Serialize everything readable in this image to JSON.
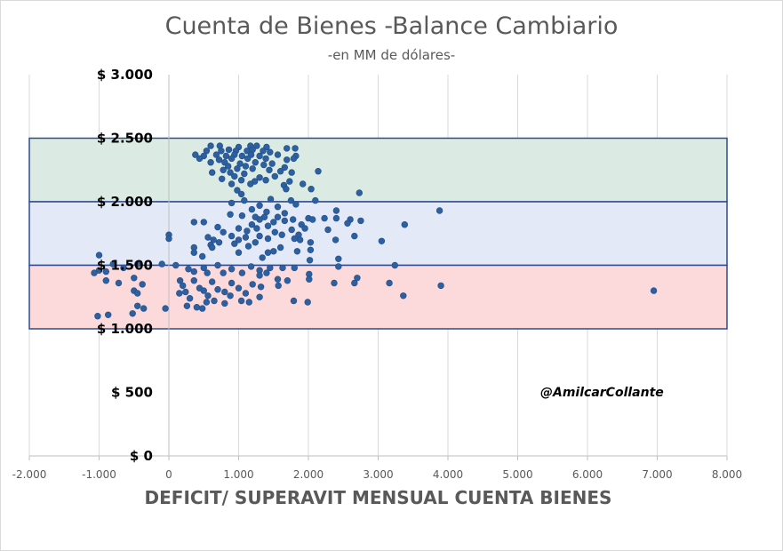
{
  "chart_data": {
    "type": "scatter",
    "title": "Cuenta de Bienes -Balance Cambiario",
    "subtitle": "-en MM de dólares-",
    "xlabel": "DEFICIT/ SUPERAVIT MENSUAL CUENTA BIENES",
    "ylabel": "",
    "annotation": "@AmilcarCollante",
    "xlim": [
      -2000,
      8000
    ],
    "ylim": [
      0,
      3000
    ],
    "x_ticks": [
      -2000,
      -1000,
      0,
      1000,
      2000,
      3000,
      4000,
      5000,
      6000,
      7000,
      8000
    ],
    "x_tick_labels": [
      "-2.000",
      "-1.000",
      "0",
      "1.000",
      "2.000",
      "3.000",
      "4.000",
      "5.000",
      "6.000",
      "7.000",
      "8.000"
    ],
    "y_ticks": [
      0,
      500,
      1000,
      1500,
      2000,
      2500,
      3000
    ],
    "y_tick_labels": [
      "$ 0",
      "$ 500",
      "$ 1.000",
      "$ 1.500",
      "$ 2.000",
      "$ 2.500",
      "$ 3.000"
    ],
    "grid": "vertical",
    "marker_color": "#2e5f9e",
    "bands": [
      {
        "y_from": 2000,
        "y_to": 2500,
        "fill": "#dbeae2",
        "stroke": "#2f4b8c"
      },
      {
        "y_from": 1500,
        "y_to": 2000,
        "fill": "#e4e9f7",
        "stroke": "#2f4b8c"
      },
      {
        "y_from": 1000,
        "y_to": 1500,
        "fill": "#fcd9da",
        "stroke": "#2f4b8c"
      }
    ],
    "points": [
      [
        600,
        2440
      ],
      [
        730,
        2440
      ],
      [
        1000,
        2430
      ],
      [
        1170,
        2440
      ],
      [
        1260,
        2440
      ],
      [
        1400,
        2430
      ],
      [
        1690,
        2420
      ],
      [
        1810,
        2420
      ],
      [
        540,
        2400
      ],
      [
        750,
        2400
      ],
      [
        860,
        2410
      ],
      [
        960,
        2400
      ],
      [
        1120,
        2400
      ],
      [
        1200,
        2410
      ],
      [
        1350,
        2400
      ],
      [
        1450,
        2390
      ],
      [
        380,
        2370
      ],
      [
        500,
        2360
      ],
      [
        680,
        2370
      ],
      [
        820,
        2360
      ],
      [
        940,
        2370
      ],
      [
        1050,
        2360
      ],
      [
        1180,
        2370
      ],
      [
        1300,
        2360
      ],
      [
        1560,
        2370
      ],
      [
        1820,
        2360
      ],
      [
        440,
        2340
      ],
      [
        720,
        2330
      ],
      [
        900,
        2340
      ],
      [
        1130,
        2340
      ],
      [
        1390,
        2340
      ],
      [
        1690,
        2330
      ],
      [
        1790,
        2340
      ],
      [
        600,
        2310
      ],
      [
        800,
        2310
      ],
      [
        1020,
        2300
      ],
      [
        1240,
        2310
      ],
      [
        1480,
        2300
      ],
      [
        850,
        2280
      ],
      [
        1100,
        2280
      ],
      [
        1360,
        2290
      ],
      [
        1660,
        2270
      ],
      [
        780,
        2250
      ],
      [
        980,
        2260
      ],
      [
        1200,
        2260
      ],
      [
        1440,
        2250
      ],
      [
        1600,
        2240
      ],
      [
        620,
        2230
      ],
      [
        880,
        2230
      ],
      [
        1080,
        2220
      ],
      [
        1760,
        2230
      ],
      [
        2140,
        2240
      ],
      [
        940,
        2200
      ],
      [
        1300,
        2190
      ],
      [
        1520,
        2200
      ],
      [
        760,
        2180
      ],
      [
        1040,
        2170
      ],
      [
        1230,
        2160
      ],
      [
        1390,
        2170
      ],
      [
        1730,
        2160
      ],
      [
        900,
        2140
      ],
      [
        1170,
        2140
      ],
      [
        1650,
        2130
      ],
      [
        1920,
        2140
      ],
      [
        1680,
        2100
      ],
      [
        2040,
        2100
      ],
      [
        980,
        2090
      ],
      [
        1040,
        2060
      ],
      [
        2730,
        2070
      ],
      [
        1080,
        2010
      ],
      [
        1460,
        2020
      ],
      [
        1750,
        2010
      ],
      [
        2100,
        2010
      ],
      [
        900,
        1990
      ],
      [
        1820,
        1980
      ],
      [
        1300,
        1970
      ],
      [
        1560,
        1960
      ],
      [
        1190,
        1940
      ],
      [
        2400,
        1930
      ],
      [
        1400,
        1920
      ],
      [
        1660,
        1910
      ],
      [
        880,
        1900
      ],
      [
        1050,
        1890
      ],
      [
        1240,
        1880
      ],
      [
        2000,
        1870
      ],
      [
        2230,
        1870
      ],
      [
        2600,
        1860
      ],
      [
        1780,
        1860
      ],
      [
        3880,
        1930
      ],
      [
        1370,
        1880
      ],
      [
        1560,
        1880
      ],
      [
        1300,
        1860
      ],
      [
        2400,
        1870
      ],
      [
        2560,
        1830
      ],
      [
        2750,
        1850
      ],
      [
        1500,
        1840
      ],
      [
        1660,
        1850
      ],
      [
        2060,
        1860
      ],
      [
        360,
        1840
      ],
      [
        500,
        1840
      ],
      [
        1190,
        1820
      ],
      [
        1900,
        1820
      ],
      [
        3380,
        1820
      ],
      [
        1420,
        1810
      ],
      [
        700,
        1800
      ],
      [
        1000,
        1790
      ],
      [
        1260,
        1790
      ],
      [
        1760,
        1780
      ],
      [
        1950,
        1790
      ],
      [
        2280,
        1780
      ],
      [
        1120,
        1770
      ],
      [
        1520,
        1760
      ],
      [
        780,
        1760
      ],
      [
        1620,
        1740
      ],
      [
        1860,
        1740
      ],
      [
        0,
        1740
      ],
      [
        2660,
        1730
      ],
      [
        560,
        1720
      ],
      [
        900,
        1730
      ],
      [
        1100,
        1720
      ],
      [
        1300,
        1730
      ],
      [
        0,
        1710
      ],
      [
        1420,
        1710
      ],
      [
        640,
        1700
      ],
      [
        1000,
        1700
      ],
      [
        1800,
        1710
      ],
      [
        3050,
        1690
      ],
      [
        720,
        1680
      ],
      [
        1240,
        1680
      ],
      [
        1880,
        1700
      ],
      [
        2390,
        1700
      ],
      [
        2030,
        1680
      ],
      [
        600,
        1660
      ],
      [
        940,
        1670
      ],
      [
        1140,
        1650
      ],
      [
        620,
        1640
      ],
      [
        360,
        1640
      ],
      [
        1600,
        1640
      ],
      [
        2030,
        1620
      ],
      [
        1500,
        1610
      ],
      [
        1000,
        1600
      ],
      [
        360,
        1600
      ],
      [
        1420,
        1600
      ],
      [
        1840,
        1610
      ],
      [
        480,
        1570
      ],
      [
        1340,
        1560
      ],
      [
        2430,
        1550
      ],
      [
        -1000,
        1580
      ],
      [
        2020,
        1540
      ],
      [
        -800,
        1510
      ],
      [
        -450,
        1510
      ],
      [
        -100,
        1510
      ],
      [
        100,
        1500
      ],
      [
        700,
        1500
      ],
      [
        1180,
        1490
      ],
      [
        1450,
        1480
      ],
      [
        1800,
        1480
      ],
      [
        2430,
        1490
      ],
      [
        3240,
        1500
      ],
      [
        -650,
        1480
      ],
      [
        280,
        1470
      ],
      [
        500,
        1480
      ],
      [
        900,
        1470
      ],
      [
        1300,
        1460
      ],
      [
        1630,
        1480
      ],
      [
        -1000,
        1460
      ],
      [
        -900,
        1450
      ],
      [
        -1070,
        1440
      ],
      [
        360,
        1450
      ],
      [
        550,
        1440
      ],
      [
        780,
        1440
      ],
      [
        1050,
        1440
      ],
      [
        1400,
        1440
      ],
      [
        2010,
        1430
      ],
      [
        -500,
        1400
      ],
      [
        1300,
        1420
      ],
      [
        2700,
        1400
      ],
      [
        1560,
        1390
      ],
      [
        -900,
        1380
      ],
      [
        -720,
        1360
      ],
      [
        -380,
        1350
      ],
      [
        160,
        1380
      ],
      [
        360,
        1380
      ],
      [
        620,
        1370
      ],
      [
        900,
        1360
      ],
      [
        1200,
        1350
      ],
      [
        1700,
        1380
      ],
      [
        2010,
        1390
      ],
      [
        3160,
        1360
      ],
      [
        3900,
        1340
      ],
      [
        2370,
        1360
      ],
      [
        2660,
        1360
      ],
      [
        6950,
        1300
      ],
      [
        200,
        1340
      ],
      [
        440,
        1320
      ],
      [
        700,
        1310
      ],
      [
        1000,
        1320
      ],
      [
        1320,
        1330
      ],
      [
        1570,
        1340
      ],
      [
        -500,
        1300
      ],
      [
        240,
        1290
      ],
      [
        500,
        1300
      ],
      [
        800,
        1290
      ],
      [
        1100,
        1280
      ],
      [
        -450,
        1280
      ],
      [
        150,
        1280
      ],
      [
        560,
        1260
      ],
      [
        880,
        1260
      ],
      [
        1300,
        1250
      ],
      [
        3360,
        1260
      ],
      [
        300,
        1240
      ],
      [
        650,
        1220
      ],
      [
        1040,
        1220
      ],
      [
        1790,
        1220
      ],
      [
        1990,
        1210
      ],
      [
        1150,
        1210
      ],
      [
        540,
        1210
      ],
      [
        800,
        1200
      ],
      [
        -450,
        1180
      ],
      [
        -360,
        1160
      ],
      [
        -50,
        1160
      ],
      [
        400,
        1170
      ],
      [
        -520,
        1120
      ],
      [
        -870,
        1110
      ],
      [
        -1020,
        1100
      ],
      [
        480,
        1160
      ],
      [
        260,
        1180
      ]
    ]
  }
}
